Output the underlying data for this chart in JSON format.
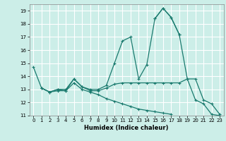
{
  "xlabel": "Humidex (Indice chaleur)",
  "bg_color": "#cceee8",
  "grid_color": "#ffffff",
  "line_color": "#1a7a6e",
  "xlim": [
    -0.5,
    23.5
  ],
  "ylim": [
    11,
    19.5
  ],
  "xticks": [
    0,
    1,
    2,
    3,
    4,
    5,
    6,
    7,
    8,
    9,
    10,
    11,
    12,
    13,
    14,
    15,
    16,
    17,
    18,
    19,
    20,
    21,
    22,
    23
  ],
  "yticks": [
    11,
    12,
    13,
    14,
    15,
    16,
    17,
    18,
    19
  ],
  "line1_x": [
    0,
    1,
    2,
    3,
    4,
    5,
    6,
    7,
    8,
    9,
    10,
    11,
    12,
    13,
    14,
    15,
    16,
    17,
    18
  ],
  "line1_y": [
    14.7,
    13.1,
    12.8,
    13.0,
    13.0,
    13.8,
    13.2,
    13.0,
    13.0,
    13.3,
    15.0,
    16.7,
    17.0,
    13.8,
    14.9,
    18.4,
    19.2,
    18.5,
    17.2
  ],
  "line2_x": [
    15,
    16,
    17,
    18,
    19,
    20,
    21,
    22,
    23
  ],
  "line2_y": [
    18.4,
    19.2,
    18.5,
    17.2,
    13.8,
    12.2,
    11.9,
    11.1,
    11.0
  ],
  "line3_x": [
    1,
    2,
    3,
    4,
    5,
    6,
    7,
    8,
    9,
    10,
    11,
    12,
    13,
    14,
    15,
    16,
    17,
    18,
    19,
    20,
    21,
    22,
    23
  ],
  "line3_y": [
    13.1,
    12.8,
    13.0,
    12.9,
    13.8,
    13.2,
    12.9,
    12.9,
    13.1,
    13.4,
    13.5,
    13.5,
    13.5,
    13.5,
    13.5,
    13.5,
    13.5,
    13.5,
    13.8,
    13.8,
    12.2,
    11.9,
    11.1
  ],
  "line4_x": [
    1,
    2,
    3,
    4,
    5,
    6,
    7,
    8,
    9,
    10,
    11,
    12,
    13,
    14,
    15,
    16,
    17
  ],
  "line4_y": [
    13.1,
    12.8,
    12.9,
    12.9,
    13.5,
    13.0,
    12.8,
    12.6,
    12.3,
    12.1,
    11.9,
    11.7,
    11.5,
    11.4,
    11.3,
    11.2,
    11.1
  ]
}
